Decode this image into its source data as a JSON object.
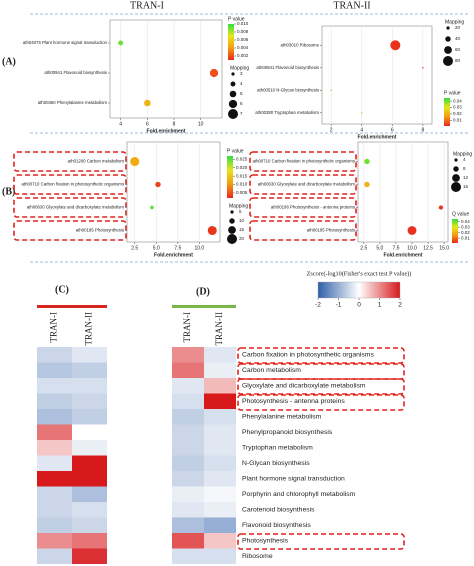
{
  "titles": [
    "TRAN-I",
    "TRAN-II"
  ],
  "panel_labels": [
    "(A)",
    "(B)",
    "(C)",
    "(D)"
  ],
  "chart_data": [
    {
      "type": "bubble",
      "xlabel": "Fold.enrichment",
      "categories": [
        "ath04075 Plant hormone signal transduction",
        "ath00941 Flavonoid biosynthesis",
        "ath00360 Phenylalanine metabolism"
      ],
      "x": [
        4,
        11,
        6
      ],
      "color_values": [
        0.009,
        0.002,
        0.005
      ],
      "mapping": [
        4,
        6,
        5
      ],
      "xlim": [
        3.2,
        11.6
      ],
      "xticks": [
        4,
        6,
        8,
        10
      ],
      "color_title": "P value",
      "clim": [
        0.001,
        0.01
      ],
      "cticks": [
        0.002,
        0.004,
        0.006,
        0.008,
        {
          "value": 0.01,
          "label": "0.010"
        }
      ],
      "size_title": "Mapping",
      "size_keys": [
        3,
        4,
        5,
        6,
        7
      ],
      "grid": true
    },
    {
      "type": "bubble",
      "xlabel": "Fold.enrichment",
      "categories": [
        "ath03010 Ribosome",
        "ath00941 Flavonoid biosynthesis",
        "ath00510 N-Glycan biosynthesis",
        "ath00380 Tryptophan metabolism"
      ],
      "x": [
        6.2,
        8.0,
        2.0,
        4.0
      ],
      "color_values": [
        0.002,
        0.003,
        0.04,
        0.038
      ],
      "mapping": [
        80,
        5,
        4,
        4
      ],
      "xlim": [
        1.4,
        8.6
      ],
      "xticks": [
        2,
        4,
        6,
        8
      ],
      "color_title": "P value",
      "clim": [
        0.001,
        0.045
      ],
      "cticks": [
        0.01,
        0.02,
        0.03,
        0.04
      ],
      "size_title": "Mapping",
      "size_keys": [
        20,
        40,
        60,
        80
      ],
      "grid": true
    },
    {
      "type": "bubble",
      "xlabel": "Fold.enrichment",
      "categories": [
        "ath01200 Carbon metabolism",
        "ath00710 Carbon fixation in photosynthetic organisms",
        "ath00630 Glyoxylate and dicarboxylate metabolism",
        "ath00195 Photosynthesis"
      ],
      "x": [
        2.5,
        5.2,
        4.5,
        11.5
      ],
      "color_values": [
        0.012,
        0.004,
        0.025,
        0.003
      ],
      "mapping": [
        18,
        10,
        6,
        18
      ],
      "xlim": [
        1.6,
        12.4
      ],
      "xticks": [
        2.5,
        {
          "value": 5.0,
          "label": "5.0"
        },
        7.5,
        {
          "value": 10.0,
          "label": "10.0"
        }
      ],
      "color_title": "P value",
      "clim": [
        0.002,
        0.027
      ],
      "cticks": [
        0.005,
        {
          "value": 0.01,
          "label": "0.010"
        },
        0.015,
        {
          "value": 0.02,
          "label": "0.020"
        },
        0.025
      ],
      "size_title": "Mapping",
      "size_keys": [
        5,
        10,
        15,
        20
      ],
      "grid": true
    },
    {
      "type": "bubble",
      "xlabel": "Fold.enrichment",
      "categories": [
        "ath00710 Carbon fixation in photosynthetic organisms",
        "ath00630 Glyoxylate and dicarboxylate metabolism",
        "ath00196 Photosynthesis - antenna proteins",
        "ath00195 Photosynthesis"
      ],
      "x": [
        3.0,
        3.0,
        14.5,
        10.0
      ],
      "color_values": [
        0.04,
        0.02,
        0.003,
        0.002
      ],
      "mapping": [
        8,
        8,
        6,
        14
      ],
      "xlim": [
        1.6,
        15.6
      ],
      "xticks": [
        2.5,
        {
          "value": 5.0,
          "label": "5.0"
        },
        7.5,
        {
          "value": 10.0,
          "label": "10.0"
        },
        12.5,
        {
          "value": 15.0,
          "label": "15.0"
        }
      ],
      "color_title": "Q value",
      "clim": [
        0.001,
        0.045
      ],
      "cticks": [
        0.01,
        0.02,
        0.03,
        0.04
      ],
      "size_title": "Mapping",
      "size_keys": [
        4,
        8,
        12,
        16
      ],
      "grid": true
    },
    {
      "type": "heatmap",
      "columns": [
        "TRAN-I",
        "TRAN-II"
      ],
      "color": "#d7261e",
      "zlim": [
        -2,
        2
      ],
      "values": [
        [
          -0.5,
          -0.3
        ],
        [
          -0.7,
          -0.6
        ],
        [
          -0.4,
          -0.4
        ],
        [
          -0.6,
          -0.5
        ],
        [
          -0.8,
          -0.6
        ],
        [
          1.2,
          0.0
        ],
        [
          0.5,
          -0.2
        ],
        [
          -0.3,
          2.0
        ],
        [
          2.0,
          2.0
        ],
        [
          -0.5,
          -0.8
        ],
        [
          -0.5,
          -0.4
        ],
        [
          -0.6,
          -0.5
        ],
        [
          1.0,
          1.2
        ],
        [
          -0.5,
          1.8
        ]
      ]
    },
    {
      "type": "heatmap",
      "columns": [
        "TRAN-I",
        "TRAN-II"
      ],
      "color": "#7ab648",
      "zlim": [
        -2,
        2
      ],
      "colorbar_title": "Zscore(-log10(Fisher's exact test P value))",
      "zticks": [
        -2,
        -1,
        0,
        1,
        2
      ],
      "rows": [
        "Carbon fixation in photosynthetic organisms",
        "Carbon metabolism",
        "Glyoxylate and dicarboxylate metabolism",
        "Photosynthesis - antenna proteins",
        "Phenylalanine metabolism",
        "Phenylpropanoid biosynthesis",
        "Tryptophan metabolism",
        "N-Glycan biosynthesis",
        "Plant hormone signal transduction",
        "Porphyrin and chlorophyll metabolism",
        "Carotenoid biosynthesis",
        "Flavonoid biosynthesis",
        "Photosynthesis",
        "Ribosome"
      ],
      "values": [
        [
          1.0,
          -0.3
        ],
        [
          1.2,
          -0.2
        ],
        [
          -0.3,
          0.6
        ],
        [
          -0.4,
          2.0
        ],
        [
          -0.6,
          -0.4
        ],
        [
          -0.5,
          -0.3
        ],
        [
          -0.5,
          -0.3
        ],
        [
          -0.6,
          -0.4
        ],
        [
          -0.5,
          -0.3
        ],
        [
          -0.2,
          -0.1
        ],
        [
          -0.3,
          -0.2
        ],
        [
          -0.8,
          -1.0
        ],
        [
          1.5,
          0.5
        ],
        [
          -0.4,
          -0.4
        ]
      ]
    }
  ]
}
